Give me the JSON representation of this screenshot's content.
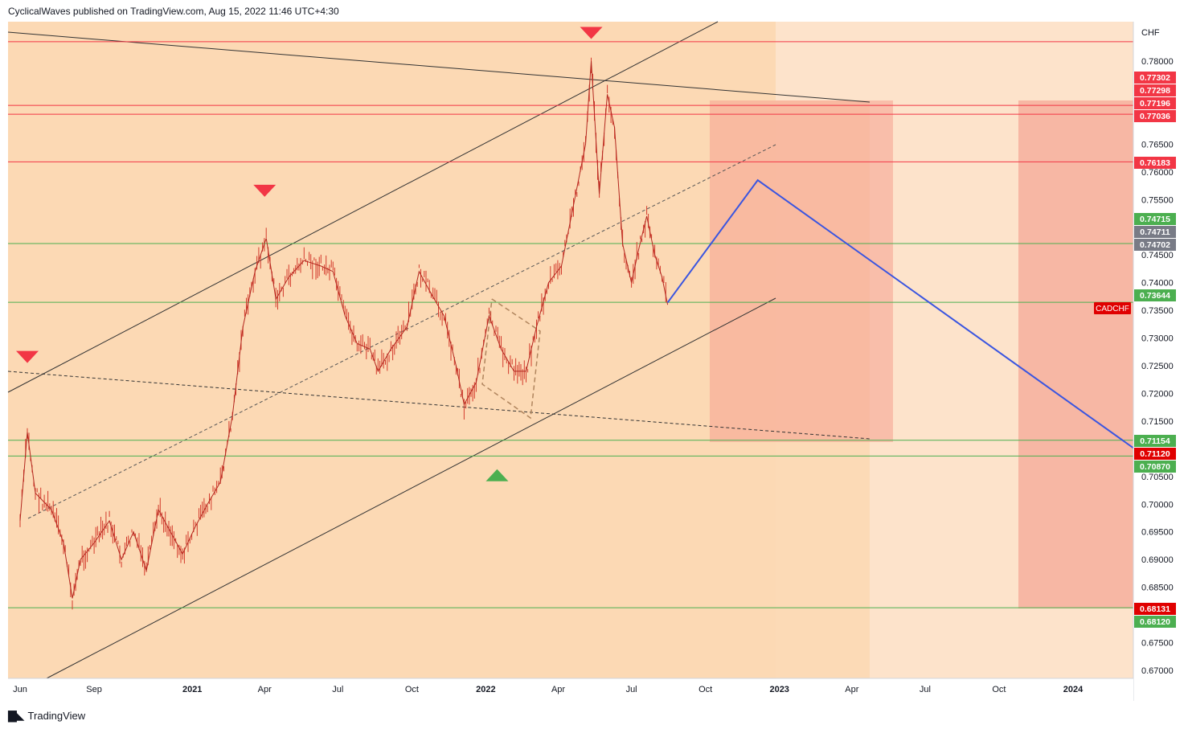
{
  "header": {
    "publisher": "CyclicalWaves",
    "published_text": "CyclicalWaves published on TradingView.com, Aug 15, 2022 11:46 UTC+4:30"
  },
  "footer": {
    "brand": "TradingView"
  },
  "colors": {
    "background": "#ffffff",
    "plot_fill": "#fde3cb",
    "channel_fill": "#fcd9ad",
    "red_zone": "#f5a08f",
    "resistance_red": "#f23645",
    "support_green": "#4caf50",
    "projection_blue": "#3a55e0",
    "candle_color": "#d33a2c",
    "gray_label": "#787b86"
  },
  "chart_data": {
    "type": "line",
    "symbol": "CADCHF",
    "currency": "CHF",
    "x_axis_labels": [
      "Jun",
      "Sep",
      "2021",
      "Apr",
      "Jul",
      "Oct",
      "2022",
      "Apr",
      "Jul",
      "Oct",
      "2023",
      "Apr",
      "Jul",
      "Oct",
      "2024"
    ],
    "y_axis_ticks": [
      "0.78000",
      "0.76500",
      "0.76000",
      "0.75500",
      "0.74500",
      "0.74000",
      "0.73500",
      "0.73000",
      "0.72500",
      "0.72000",
      "0.71500",
      "0.70500",
      "0.70000",
      "0.69500",
      "0.69000",
      "0.68500",
      "0.67500",
      "0.67000"
    ],
    "ylim": [
      0.6665,
      0.7845
    ],
    "price_labels": [
      {
        "value": "0.77302",
        "color": "#f23645"
      },
      {
        "value": "0.77298",
        "color": "#f23645"
      },
      {
        "value": "0.77196",
        "color": "#f23645"
      },
      {
        "value": "0.77036",
        "color": "#f23645"
      },
      {
        "value": "0.76183",
        "color": "#f23645"
      },
      {
        "value": "0.74715",
        "color": "#4caf50"
      },
      {
        "value": "0.74711",
        "color": "#787b86"
      },
      {
        "value": "0.74702",
        "color": "#787b86"
      },
      {
        "value": "0.73644",
        "color": "#4caf50"
      },
      {
        "value": "0.71154",
        "color": "#4caf50"
      },
      {
        "value": "0.71120",
        "color": "#e00000"
      },
      {
        "value": "0.70870",
        "color": "#4caf50"
      },
      {
        "value": "0.68131",
        "color": "#e00000"
      },
      {
        "value": "0.68120",
        "color": "#4caf50"
      }
    ],
    "symbol_badge": "CADCHF",
    "horizontal_levels": {
      "resistance": [
        0.7835,
        0.772,
        0.7704,
        0.7618
      ],
      "support": [
        0.74705,
        0.73644,
        0.71154,
        0.7087,
        0.6813
      ]
    },
    "price_series": {
      "name": "CADCHF",
      "points": [
        [
          "2020-06-01",
          0.697
        ],
        [
          "2020-06-10",
          0.713
        ],
        [
          "2020-06-20",
          0.702
        ],
        [
          "2020-07-10",
          0.699
        ],
        [
          "2020-07-25",
          0.693
        ],
        [
          "2020-08-05",
          0.683
        ],
        [
          "2020-08-15",
          0.69
        ],
        [
          "2020-09-01",
          0.693
        ],
        [
          "2020-09-20",
          0.697
        ],
        [
          "2020-10-05",
          0.69
        ],
        [
          "2020-10-20",
          0.695
        ],
        [
          "2020-11-05",
          0.688
        ],
        [
          "2020-11-20",
          0.699
        ],
        [
          "2020-12-05",
          0.695
        ],
        [
          "2020-12-20",
          0.691
        ],
        [
          "2021-01-05",
          0.696
        ],
        [
          "2021-01-20",
          0.7
        ],
        [
          "2021-02-05",
          0.704
        ],
        [
          "2021-02-20",
          0.716
        ],
        [
          "2021-03-05",
          0.732
        ],
        [
          "2021-03-20",
          0.742
        ],
        [
          "2021-04-03",
          0.748
        ],
        [
          "2021-04-15",
          0.737
        ],
        [
          "2021-05-01",
          0.741
        ],
        [
          "2021-05-20",
          0.744
        ],
        [
          "2021-06-10",
          0.743
        ],
        [
          "2021-06-25",
          0.742
        ],
        [
          "2021-07-10",
          0.734
        ],
        [
          "2021-07-25",
          0.729
        ],
        [
          "2021-08-10",
          0.728
        ],
        [
          "2021-08-20",
          0.724
        ],
        [
          "2021-09-05",
          0.728
        ],
        [
          "2021-09-25",
          0.732
        ],
        [
          "2021-10-10",
          0.742
        ],
        [
          "2021-10-25",
          0.738
        ],
        [
          "2021-11-10",
          0.734
        ],
        [
          "2021-11-25",
          0.725
        ],
        [
          "2021-12-05",
          0.718
        ],
        [
          "2021-12-20",
          0.722
        ],
        [
          "2022-01-05",
          0.734
        ],
        [
          "2022-01-20",
          0.728
        ],
        [
          "2022-02-05",
          0.724
        ],
        [
          "2022-02-20",
          0.724
        ],
        [
          "2022-03-05",
          0.732
        ],
        [
          "2022-03-20",
          0.74
        ],
        [
          "2022-04-05",
          0.743
        ],
        [
          "2022-04-20",
          0.754
        ],
        [
          "2022-05-05",
          0.765
        ],
        [
          "2022-05-12",
          0.78
        ],
        [
          "2022-05-22",
          0.756
        ],
        [
          "2022-06-01",
          0.774
        ],
        [
          "2022-06-10",
          0.768
        ],
        [
          "2022-06-20",
          0.747
        ],
        [
          "2022-07-01",
          0.74
        ],
        [
          "2022-07-10",
          0.746
        ],
        [
          "2022-07-20",
          0.752
        ],
        [
          "2022-07-30",
          0.745
        ],
        [
          "2022-08-08",
          0.741
        ],
        [
          "2022-08-15",
          0.736
        ]
      ]
    },
    "projection_series": {
      "points": [
        [
          "2022-08-15",
          0.7364
        ],
        [
          "2022-12-05",
          0.7585
        ],
        [
          "2024-04-25",
          0.706
        ]
      ]
    },
    "markers": [
      {
        "date": "2020-06-10",
        "price": 0.7265,
        "shape": "triangle-down",
        "color": "#f23645"
      },
      {
        "date": "2021-04-01",
        "price": 0.7565,
        "shape": "triangle-down",
        "color": "#f23645"
      },
      {
        "date": "2022-05-12",
        "price": 0.785,
        "shape": "triangle-down",
        "color": "#f23645"
      },
      {
        "date": "2022-01-15",
        "price": 0.7053,
        "shape": "triangle-up",
        "color": "#4caf50"
      }
    ],
    "grid": false
  }
}
